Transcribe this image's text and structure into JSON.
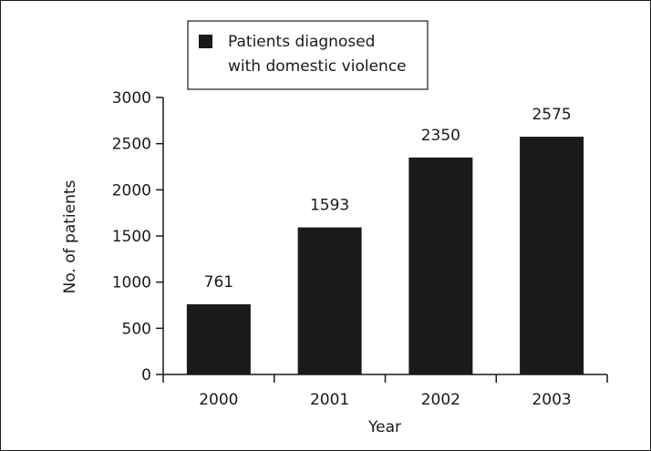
{
  "chart_data": {
    "type": "bar",
    "categories": [
      "2000",
      "2001",
      "2002",
      "2003"
    ],
    "series": [
      {
        "name": "Patients diagnosed with domestic violence",
        "values": [
          761,
          1593,
          2350,
          2575
        ]
      }
    ],
    "data_labels": [
      "761",
      "1593",
      "2350",
      "2575"
    ],
    "xlabel": "Year",
    "ylabel": "No. of patients",
    "ylim": [
      0,
      3000
    ],
    "yticks": [
      0,
      500,
      1000,
      1500,
      2000,
      2500,
      3000
    ],
    "grid": false,
    "legend": {
      "placement": "top-left",
      "lines": [
        "Patients diagnosed",
        "with domestic violence"
      ]
    },
    "colors": {
      "bar": "#1a1a1a",
      "axis": "#1a1a1a",
      "background": "#ffffff"
    }
  }
}
